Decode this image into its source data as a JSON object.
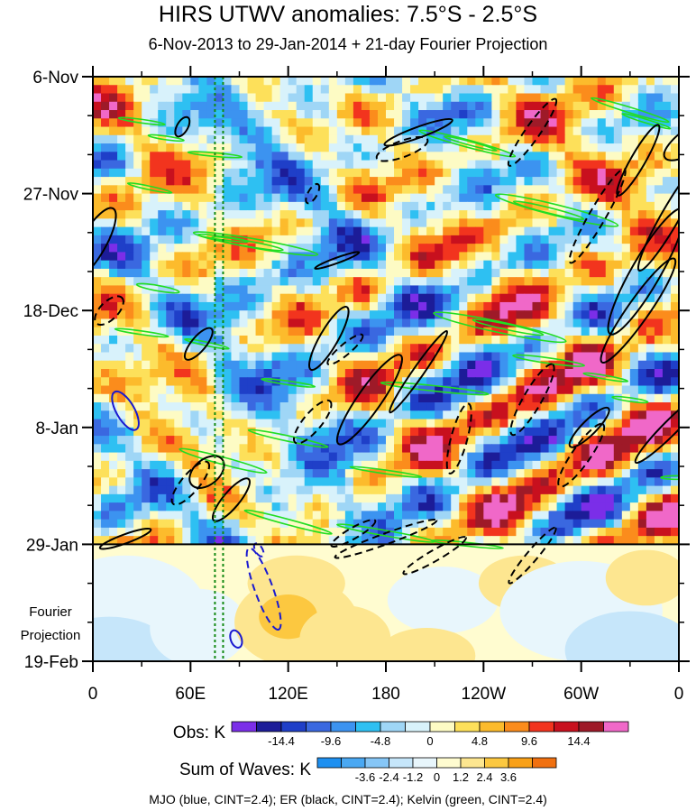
{
  "chart_data": {
    "type": "heatmap",
    "title": "HIRS UTWV anomalies: 7.5°S - 2.5°S",
    "subtitle": "6-Nov-2013 to 29-Jan-2014 + 21-day Fourier Projection",
    "x_tick_labels": [
      "0",
      "60E",
      "120E",
      "180",
      "120W",
      "60W",
      "0"
    ],
    "x_tick_lons": [
      0,
      60,
      120,
      180,
      240,
      300,
      360
    ],
    "y_tick_labels": [
      "6-Nov",
      "27-Nov",
      "18-Dec",
      "8-Jan",
      "29-Jan",
      "19-Feb"
    ],
    "y_tick_days": [
      0,
      21,
      42,
      63,
      84,
      105
    ],
    "projection_start_label": "29-Jan",
    "projection_label": "Fourier Projection",
    "reference_lons": [
      75,
      80
    ],
    "obs_colorbar": {
      "label": "Obs: K",
      "tick_labels": [
        "-14.4",
        "-9.6",
        "-4.8",
        "0",
        "4.8",
        "9.6",
        "14.4"
      ],
      "colors": [
        "#7b2ee8",
        "#1c1c98",
        "#1f3fc8",
        "#3a68e0",
        "#3c93f0",
        "#2ec0f2",
        "#9fd6f6",
        "#d8f2fb",
        "#fdfbc4",
        "#fde05a",
        "#fcbb2c",
        "#fb8c1c",
        "#f2341e",
        "#c8101e",
        "#9e1a28",
        "#f068c8"
      ]
    },
    "waves_colorbar": {
      "label": "Sum of Waves: K",
      "tick_labels": [
        "-3.6",
        "-2.4",
        "-1.2",
        "0",
        "1.2",
        "2.4",
        "3.6"
      ],
      "colors": [
        "#1e90f0",
        "#4aa8f2",
        "#86c6f6",
        "#c6e6fa",
        "#e8f6fc",
        "#fffcd0",
        "#fde690",
        "#fcc840",
        "#f8a018",
        "#f07010"
      ]
    },
    "contour_legend": "MJO (blue, CINT=2.4); ER (black, CINT=2.4); Kelvin (green, CINT=2.4)",
    "series": [
      {
        "name": "MJO",
        "color": "#1a1ad0",
        "cint": 2.4
      },
      {
        "name": "ER",
        "color": "#000000",
        "cint": 2.4
      },
      {
        "name": "Kelvin",
        "color": "#22dd22",
        "cint": 2.4
      }
    ],
    "grid": false
  }
}
